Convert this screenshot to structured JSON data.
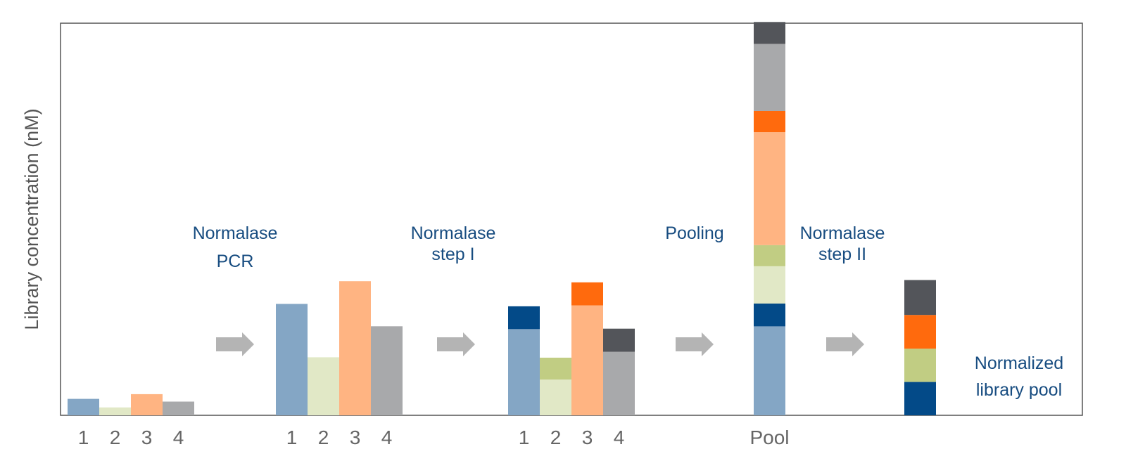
{
  "chart_data": {
    "type": "bar",
    "subtype": "stacked",
    "ylabel": "Library concentration (nM)",
    "xlabel": "",
    "grid": false,
    "legend": "none",
    "y_ticks_shown": false,
    "ylim": [
      0,
      100
    ],
    "colors": {
      "lib1_light": "#84a6c5",
      "lib1_dark": "#034a88",
      "lib2_light": "#e1e8c6",
      "lib2_dark": "#c1cd83",
      "lib3_light": "#ffb482",
      "lib3_dark": "#ff6a0d",
      "lib4_light": "#a8a9ab",
      "lib4_dark": "#53555a",
      "arrow": "#b4b4b4",
      "step_text": "#174c80",
      "axis": "#555555",
      "tick_text": "#666666"
    },
    "groups": [
      {
        "name": "initial",
        "bars": [
          {
            "label": "1",
            "segments": [
              {
                "value": 4.2,
                "color": "lib1_light"
              }
            ]
          },
          {
            "label": "2",
            "segments": [
              {
                "value": 2.0,
                "color": "lib2_light"
              }
            ]
          },
          {
            "label": "3",
            "segments": [
              {
                "value": 5.4,
                "color": "lib3_light"
              }
            ]
          },
          {
            "label": "4",
            "segments": [
              {
                "value": 3.5,
                "color": "lib4_light"
              }
            ]
          }
        ]
      },
      {
        "name": "after-normalase-pcr",
        "bars": [
          {
            "label": "1",
            "segments": [
              {
                "value": 28.4,
                "color": "lib1_light"
              }
            ]
          },
          {
            "label": "2",
            "segments": [
              {
                "value": 14.8,
                "color": "lib2_light"
              }
            ]
          },
          {
            "label": "3",
            "segments": [
              {
                "value": 34.2,
                "color": "lib3_light"
              }
            ]
          },
          {
            "label": "4",
            "segments": [
              {
                "value": 22.7,
                "color": "lib4_light"
              }
            ]
          }
        ]
      },
      {
        "name": "after-normalase-step-1",
        "bars": [
          {
            "label": "1",
            "segments": [
              {
                "value": 22.0,
                "color": "lib1_light"
              },
              {
                "value": 5.8,
                "color": "lib1_dark"
              }
            ]
          },
          {
            "label": "2",
            "segments": [
              {
                "value": 9.1,
                "color": "lib2_light"
              },
              {
                "value": 5.6,
                "color": "lib2_dark"
              }
            ]
          },
          {
            "label": "3",
            "segments": [
              {
                "value": 28.0,
                "color": "lib3_light"
              },
              {
                "value": 5.9,
                "color": "lib3_dark"
              }
            ]
          },
          {
            "label": "4",
            "segments": [
              {
                "value": 16.2,
                "color": "lib4_light"
              },
              {
                "value": 5.9,
                "color": "lib4_dark"
              }
            ]
          }
        ]
      },
      {
        "name": "pooled",
        "bars": [
          {
            "label": "Pool",
            "segments": [
              {
                "value": 22.7,
                "color": "lib1_light"
              },
              {
                "value": 5.8,
                "color": "lib1_dark"
              },
              {
                "value": 9.5,
                "color": "lib2_light"
              },
              {
                "value": 5.4,
                "color": "lib2_dark"
              },
              {
                "value": 28.8,
                "color": "lib3_light"
              },
              {
                "value": 5.4,
                "color": "lib3_dark"
              },
              {
                "value": 17.1,
                "color": "lib4_light"
              },
              {
                "value": 5.6,
                "color": "lib4_dark"
              }
            ]
          }
        ]
      },
      {
        "name": "normalized",
        "bars": [
          {
            "label": "",
            "segments": [
              {
                "value": 8.5,
                "color": "lib1_dark"
              },
              {
                "value": 8.5,
                "color": "lib2_dark"
              },
              {
                "value": 8.6,
                "color": "lib3_dark"
              },
              {
                "value": 8.9,
                "color": "lib4_dark"
              }
            ]
          }
        ]
      }
    ],
    "steps": [
      {
        "lines": [
          "Normalase",
          "PCR"
        ]
      },
      {
        "lines": [
          "Normalase",
          "step I"
        ]
      },
      {
        "lines": [
          "Pooling"
        ]
      },
      {
        "lines": [
          "Normalase",
          "step II"
        ]
      }
    ],
    "end_label": {
      "lines": [
        "Normalized",
        "library pool"
      ]
    }
  }
}
